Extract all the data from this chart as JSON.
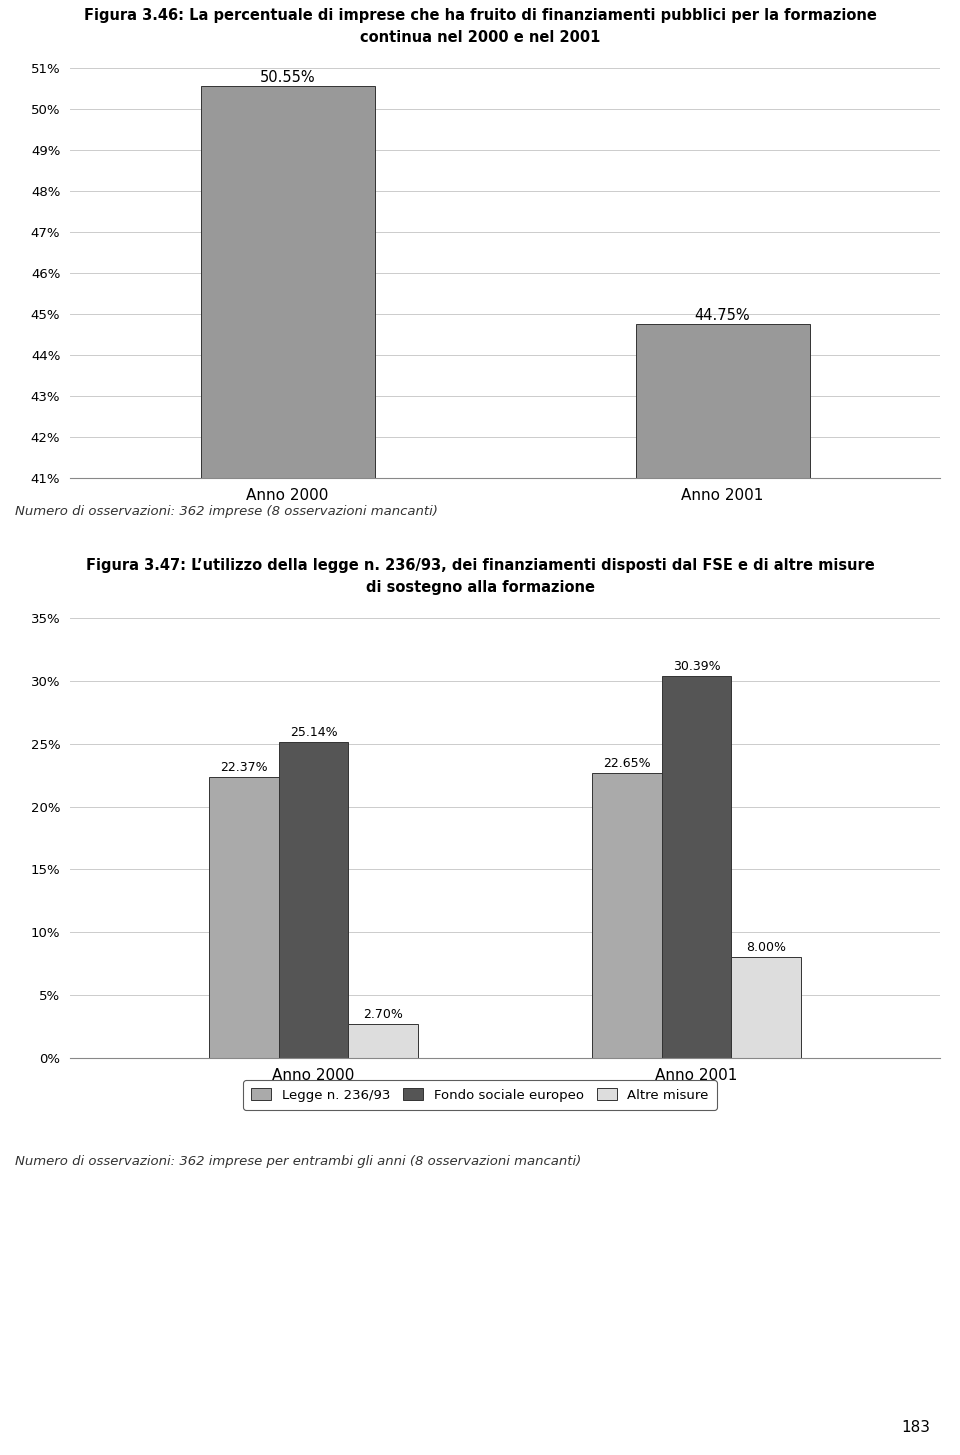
{
  "fig1": {
    "title_line1": "Figura 3.46: La percentuale di imprese che ha fruito di finanziamenti pubblici per la formazione",
    "title_line2": "continua nel 2000 e nel 2001",
    "categories": [
      "Anno 2000",
      "Anno 2001"
    ],
    "values": [
      50.55,
      44.75
    ],
    "bar_color": "#999999",
    "bar_edge_color": "#333333",
    "ylim": [
      41,
      51
    ],
    "yticks": [
      41,
      42,
      43,
      44,
      45,
      46,
      47,
      48,
      49,
      50,
      51
    ],
    "ytick_labels": [
      "41%",
      "42%",
      "43%",
      "44%",
      "45%",
      "46%",
      "47%",
      "48%",
      "49%",
      "50%",
      "51%"
    ],
    "value_labels": [
      "50.55%",
      "44.75%"
    ],
    "note": "Numero di osservazioni: 362 imprese (8 osservazioni mancanti)"
  },
  "fig2": {
    "title_line1": "Figura 3.47: L’utilizzo della legge n. 236/93, dei finanziamenti disposti dal FSE e di altre misure",
    "title_line2": "di sostegno alla formazione",
    "groups": [
      "Anno 2000",
      "Anno 2001"
    ],
    "series_labels": [
      "Legge n. 236/93",
      "Fondo sociale europeo",
      "Altre misure"
    ],
    "values": {
      "Anno 2000": [
        22.37,
        25.14,
        2.7
      ],
      "Anno 2001": [
        22.65,
        30.39,
        8.0
      ]
    },
    "bar_colors": [
      "#aaaaaa",
      "#555555",
      "#dddddd"
    ],
    "bar_edge_color": "#333333",
    "value_labels": {
      "Anno 2000": [
        "22.37%",
        "25.14%",
        "2.70%"
      ],
      "Anno 2001": [
        "22.65%",
        "30.39%",
        "8.00%"
      ]
    },
    "ylim": [
      0,
      35
    ],
    "yticks": [
      0,
      5,
      10,
      15,
      20,
      25,
      30,
      35
    ],
    "ytick_labels": [
      "0%",
      "5%",
      "10%",
      "15%",
      "20%",
      "25%",
      "30%",
      "35%"
    ],
    "note": "Numero di osservazioni: 362 imprese per entrambi gli anni (8 osservazioni mancanti)"
  },
  "page_number": "183",
  "background_color": "#ffffff"
}
